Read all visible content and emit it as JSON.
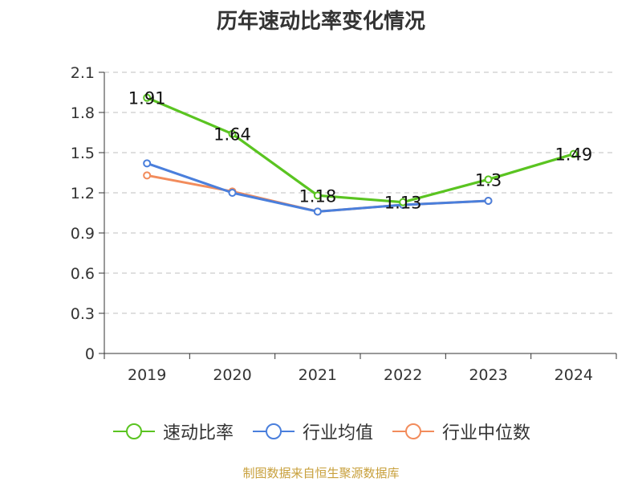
{
  "chart_data": {
    "type": "line",
    "title": "历年速动比率变化情况",
    "categories": [
      "2019",
      "2020",
      "2021",
      "2022",
      "2023",
      "2024"
    ],
    "ylim": [
      0,
      2.1
    ],
    "yticks": [
      "0",
      "0.3",
      "0.6",
      "0.9",
      "1.2",
      "1.5",
      "1.8",
      "2.1"
    ],
    "grid": true,
    "legend_position": "bottom",
    "series": [
      {
        "name": "速动比率",
        "color": "#5ac421",
        "values": [
          1.91,
          1.64,
          1.18,
          1.13,
          1.3,
          1.49
        ],
        "labels": [
          "1.91",
          "1.64",
          "1.18",
          "1.13",
          "1.3",
          "1.49"
        ]
      },
      {
        "name": "行业均值",
        "color": "#4a7fdc",
        "values": [
          1.42,
          1.2,
          1.06,
          1.11,
          1.14,
          null
        ]
      },
      {
        "name": "行业中位数",
        "color": "#f28c5c",
        "values": [
          1.33,
          1.21,
          1.06,
          1.11,
          1.14,
          null
        ]
      }
    ]
  },
  "source": "制图数据来自恒生聚源数据库"
}
